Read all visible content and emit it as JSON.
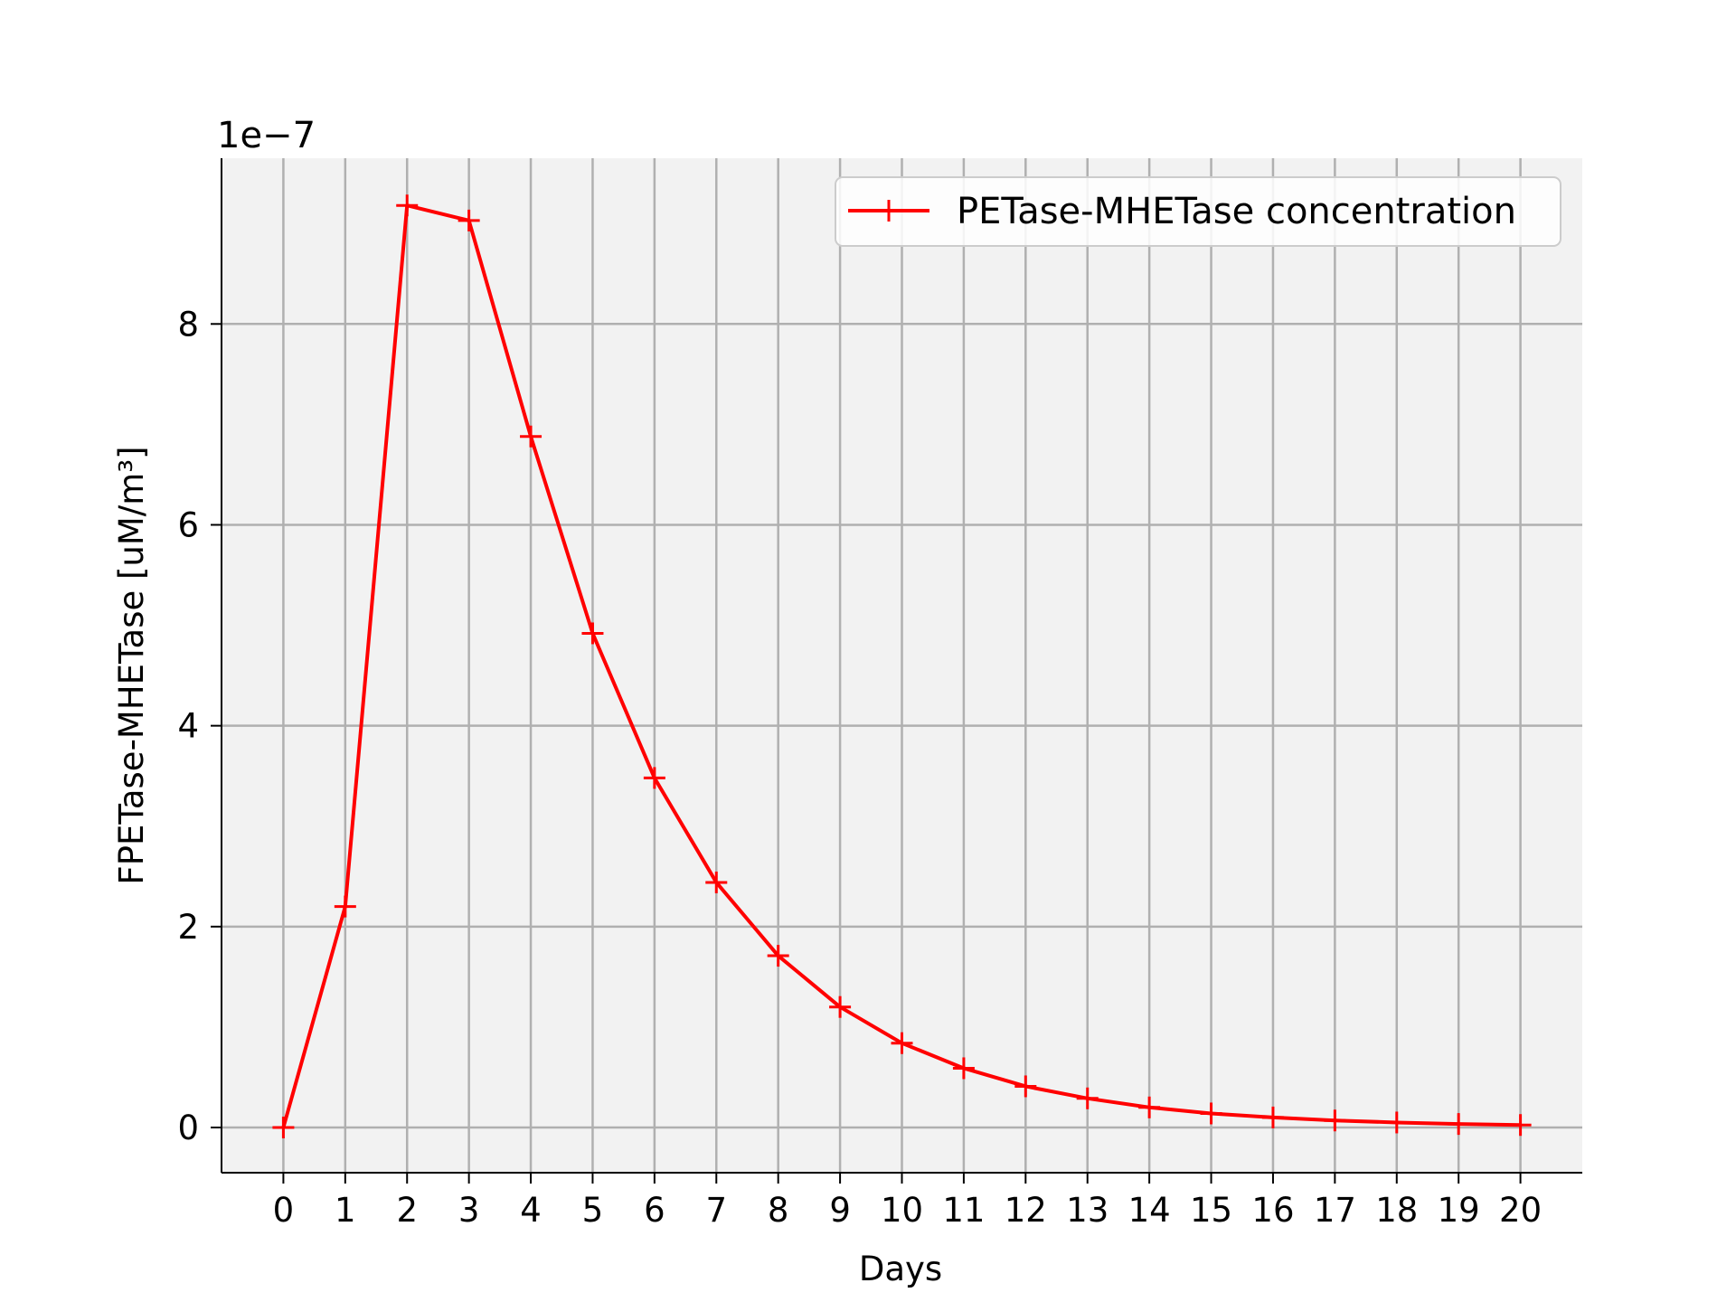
{
  "chart_data": {
    "type": "line",
    "title": "",
    "xlabel": "Days",
    "ylabel": "FPETase-MHETase [uM/m³]",
    "y_exponent_label": "1e−7",
    "y_scale_factor": 1e-07,
    "xlim": [
      -1.0,
      21.0
    ],
    "ylim": [
      -4.5e-08,
      9.65e-07
    ],
    "x_ticks": [
      0,
      1,
      2,
      3,
      4,
      5,
      6,
      7,
      8,
      9,
      10,
      11,
      12,
      13,
      14,
      15,
      16,
      17,
      18,
      19,
      20
    ],
    "x_tick_labels": [
      "0",
      "1",
      "2",
      "3",
      "4",
      "5",
      "6",
      "7",
      "8",
      "9",
      "10",
      "11",
      "12",
      "13",
      "14",
      "15",
      "16",
      "17",
      "18",
      "19",
      "20"
    ],
    "y_ticks": [
      0,
      2e-07,
      4e-07,
      6e-07,
      8e-07
    ],
    "y_tick_labels": [
      "0",
      "2",
      "4",
      "6",
      "8"
    ],
    "grid": true,
    "legend_position": "top-right",
    "plot_background": "#f2f2f2",
    "grid_color": "#b0b0b0",
    "series": [
      {
        "name": "PETase-MHETase concentration",
        "color": "#ff0000",
        "marker": "plus",
        "x": [
          0,
          1,
          2,
          3,
          4,
          5,
          6,
          7,
          8,
          9,
          10,
          11,
          12,
          13,
          14,
          15,
          16,
          17,
          18,
          19,
          20
        ],
        "y": [
          0,
          2.2e-07,
          9.18e-07,
          9.03e-07,
          6.88e-07,
          4.92e-07,
          3.48e-07,
          2.44e-07,
          1.71e-07,
          1.2e-07,
          8.4e-08,
          5.9e-08,
          4.1e-08,
          2.9e-08,
          2e-08,
          1.4e-08,
          1e-08,
          7e-09,
          5e-09,
          3.5e-09,
          2.5e-09
        ]
      }
    ]
  }
}
